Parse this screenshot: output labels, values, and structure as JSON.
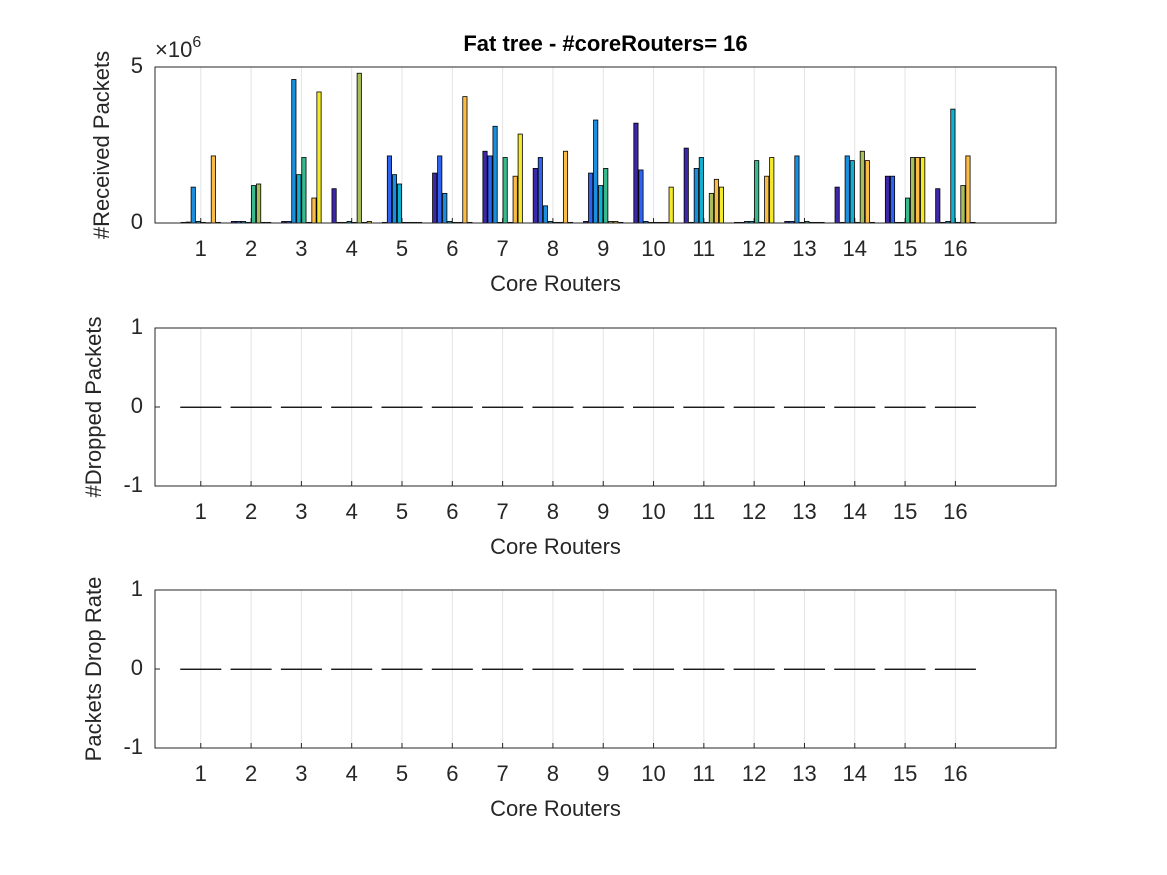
{
  "chart_data": [
    {
      "type": "bar",
      "title": "Fat tree - #coreRouters= 16",
      "xlabel": "Core Routers",
      "ylabel": "#Received Packets",
      "ymultiplier": {
        "base": "×10",
        "exponent": "6"
      },
      "x": [
        1,
        2,
        3,
        4,
        5,
        6,
        7,
        8,
        9,
        10,
        11,
        12,
        13,
        14,
        15,
        16
      ],
      "xlim": [
        0.09,
        18
      ],
      "xticks": [
        1,
        2,
        3,
        4,
        5,
        6,
        7,
        8,
        9,
        10,
        11,
        12,
        13,
        14,
        15,
        16
      ],
      "ylim": [
        0,
        5
      ],
      "yticks": [
        0,
        5
      ],
      "grid": true,
      "series": [
        {
          "color": "#3e26a8",
          "values": [
            0.02,
            0.05,
            0.05,
            1.1,
            0.02,
            1.6,
            2.3,
            1.75,
            0.05,
            3.2,
            2.4,
            0.02,
            0.05,
            1.15,
            1.5,
            1.1
          ]
        },
        {
          "color": "#2e63f2",
          "values": [
            0.03,
            0.05,
            0.05,
            0.02,
            2.15,
            2.15,
            2.15,
            2.1,
            1.6,
            1.7,
            0.02,
            0.02,
            0.05,
            0.02,
            1.5,
            0.02
          ]
        },
        {
          "color": "#1a8fe0",
          "values": [
            1.15,
            0.05,
            4.6,
            0.02,
            1.55,
            0.95,
            3.1,
            0.55,
            3.3,
            0.05,
            1.75,
            0.05,
            2.15,
            2.15,
            0.02,
            0.05
          ]
        },
        {
          "color": "#12b0d0",
          "values": [
            0.05,
            0.02,
            1.55,
            0.05,
            1.25,
            0.05,
            0.02,
            0.05,
            1.2,
            0.02,
            2.1,
            0.05,
            0.02,
            2.0,
            0.02,
            3.65
          ]
        },
        {
          "color": "#38b98e",
          "values": [
            0.02,
            1.2,
            2.1,
            0.02,
            0.02,
            0.02,
            2.1,
            0.02,
            1.75,
            0.02,
            0.02,
            2.0,
            0.05,
            0.02,
            0.8,
            0.02
          ]
        },
        {
          "color": "#a8be5a",
          "values": [
            0.01,
            1.25,
            0.02,
            4.8,
            0.02,
            0.02,
            0.02,
            0.02,
            0.05,
            0.02,
            0.95,
            0.02,
            0.02,
            2.3,
            2.1,
            1.2
          ]
        },
        {
          "color": "#fbbc45",
          "values": [
            2.15,
            0.02,
            0.8,
            0.02,
            0.02,
            4.05,
            1.5,
            2.3,
            0.05,
            0.02,
            1.4,
            1.5,
            0.02,
            2.0,
            2.1,
            2.15
          ]
        },
        {
          "color": "#f5ea2a",
          "values": [
            0.02,
            0.02,
            4.2,
            0.05,
            0.02,
            0.02,
            2.85,
            0.02,
            0.02,
            1.15,
            1.15,
            2.1,
            0.02,
            0.02,
            2.1,
            0.02
          ]
        }
      ]
    },
    {
      "type": "bar",
      "xlabel": "Core Routers",
      "ylabel": "#Dropped Packets",
      "x": [
        1,
        2,
        3,
        4,
        5,
        6,
        7,
        8,
        9,
        10,
        11,
        12,
        13,
        14,
        15,
        16
      ],
      "xlim": [
        0.09,
        18
      ],
      "xticks": [
        1,
        2,
        3,
        4,
        5,
        6,
        7,
        8,
        9,
        10,
        11,
        12,
        13,
        14,
        15,
        16
      ],
      "ylim": [
        -1,
        1
      ],
      "yticks": [
        -1,
        0,
        1
      ],
      "grid": true,
      "values": [
        0,
        0,
        0,
        0,
        0,
        0,
        0,
        0,
        0,
        0,
        0,
        0,
        0,
        0,
        0,
        0
      ],
      "color": "#3e26a8"
    },
    {
      "type": "bar",
      "xlabel": "Core Routers",
      "ylabel": "Packets Drop Rate",
      "x": [
        1,
        2,
        3,
        4,
        5,
        6,
        7,
        8,
        9,
        10,
        11,
        12,
        13,
        14,
        15,
        16
      ],
      "xlim": [
        0.09,
        18
      ],
      "xticks": [
        1,
        2,
        3,
        4,
        5,
        6,
        7,
        8,
        9,
        10,
        11,
        12,
        13,
        14,
        15,
        16
      ],
      "ylim": [
        -1,
        1
      ],
      "yticks": [
        -1,
        0,
        1
      ],
      "grid": true,
      "values": [
        0,
        0,
        0,
        0,
        0,
        0,
        0,
        0,
        0,
        0,
        0,
        0,
        0,
        0,
        0,
        0
      ],
      "color": "#3e26a8"
    }
  ]
}
